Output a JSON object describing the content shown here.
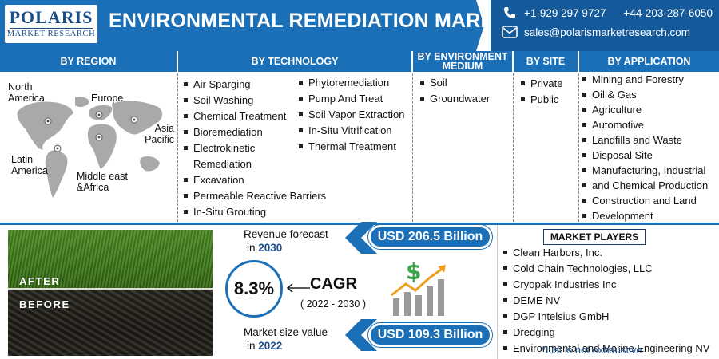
{
  "brand": {
    "name": "POLARIS",
    "sub": "MARKET RESEARCH"
  },
  "title": "ENVIRONMENTAL REMEDIATION MARKET",
  "contact": {
    "phone_1": "+1-929 297 9727",
    "phone_2": "+44-203-287-6050",
    "email": "sales@polarismarketresearch.com"
  },
  "sections": {
    "region": {
      "header": "BY REGION",
      "labels": [
        "North America",
        "Europe",
        "Asia Pacific",
        "Latin America",
        "Middle east &Africa"
      ]
    },
    "technology": {
      "header": "BY TECHNOLOGY",
      "items_left": [
        "Air Sparging",
        "Soil Washing",
        "Chemical Treatment",
        "Bioremediation",
        "Electrokinetic Remediation",
        "Excavation",
        "Permeable Reactive Barriers",
        "In-Situ Grouting"
      ],
      "items_right": [
        "Phytoremediation",
        "Pump And Treat",
        "Soil Vapor Extraction",
        "In-Situ Vitrification",
        "Thermal Treatment"
      ]
    },
    "medium": {
      "header": "BY ENVIRONMENT MEDIUM",
      "items": [
        "Soil",
        "Groundwater"
      ]
    },
    "site": {
      "header": "BY SITE",
      "items": [
        "Private",
        "Public"
      ]
    },
    "application": {
      "header": "BY APPLICATION",
      "items": [
        "Mining and Forestry",
        "Oil & Gas",
        "Agriculture",
        "Automotive",
        "Landfills and Waste",
        "Disposal Site",
        "Manufacturing, Industrial",
        "and Chemical Production",
        "Construction and Land",
        "Development"
      ]
    }
  },
  "photo": {
    "after": "AFTER",
    "before": "BEFORE"
  },
  "stats": {
    "revenue_label": "Revenue forecast",
    "revenue_in": "in",
    "revenue_year": "2030",
    "revenue_value": "USD 206.5 Billion",
    "cagr_value": "8.3%",
    "cagr_label": "CAGR",
    "cagr_years": "( 2022 - 2030 )",
    "size_label": "Market size value",
    "size_in": "in",
    "size_year": "2022",
    "size_value": "USD 109.3 Billion"
  },
  "players": {
    "title": "MARKET PLAYERS",
    "items": [
      "Clean Harbors, Inc.",
      "Cold Chain Technologies, LLC",
      "Cryopak Industries Inc",
      "DEME NV",
      "DGP Intelsius GmbH",
      "Dredging",
      "Environmental and Marine Engineering NV"
    ],
    "note": "*List is not exhaustive"
  },
  "colors": {
    "primary": "#1b6fb6",
    "dark": "#14599a",
    "accent_green": "#3aa64a"
  },
  "icons": [
    "phone-icon",
    "mail-icon",
    "location-pin-icon",
    "dollar-growth-icon",
    "chevron-left-icon"
  ]
}
